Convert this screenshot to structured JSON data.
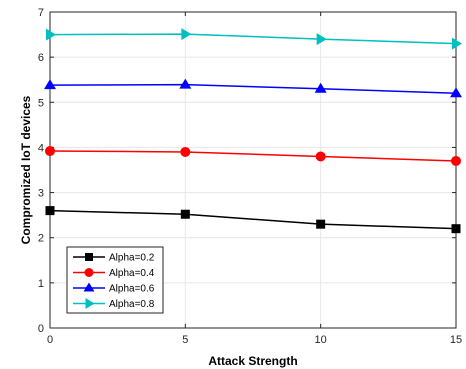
{
  "chart_data": {
    "type": "line",
    "title": "",
    "xlabel": "Attack Strength",
    "ylabel": "Compromized IoT devices",
    "x": [
      0,
      5,
      10,
      15
    ],
    "xlim": [
      0,
      15
    ],
    "ylim": [
      0,
      7
    ],
    "xticks": [
      0,
      5,
      10,
      15
    ],
    "yticks": [
      0,
      1,
      2,
      3,
      4,
      5,
      6,
      7
    ],
    "grid": true,
    "legend_position": "lower-left",
    "series": [
      {
        "name": "Alpha=0.2",
        "values": [
          2.6,
          2.52,
          2.3,
          2.2
        ],
        "color": "#000000",
        "marker": "square"
      },
      {
        "name": "Alpha=0.4",
        "values": [
          3.92,
          3.9,
          3.8,
          3.7
        ],
        "color": "#ff0000",
        "marker": "circle"
      },
      {
        "name": "Alpha=0.6",
        "values": [
          5.38,
          5.39,
          5.3,
          5.2
        ],
        "color": "#0000ff",
        "marker": "triangle-up"
      },
      {
        "name": "Alpha=0.8",
        "values": [
          6.5,
          6.51,
          6.4,
          6.3
        ],
        "color": "#00bfbf",
        "marker": "triangle-right"
      }
    ]
  }
}
